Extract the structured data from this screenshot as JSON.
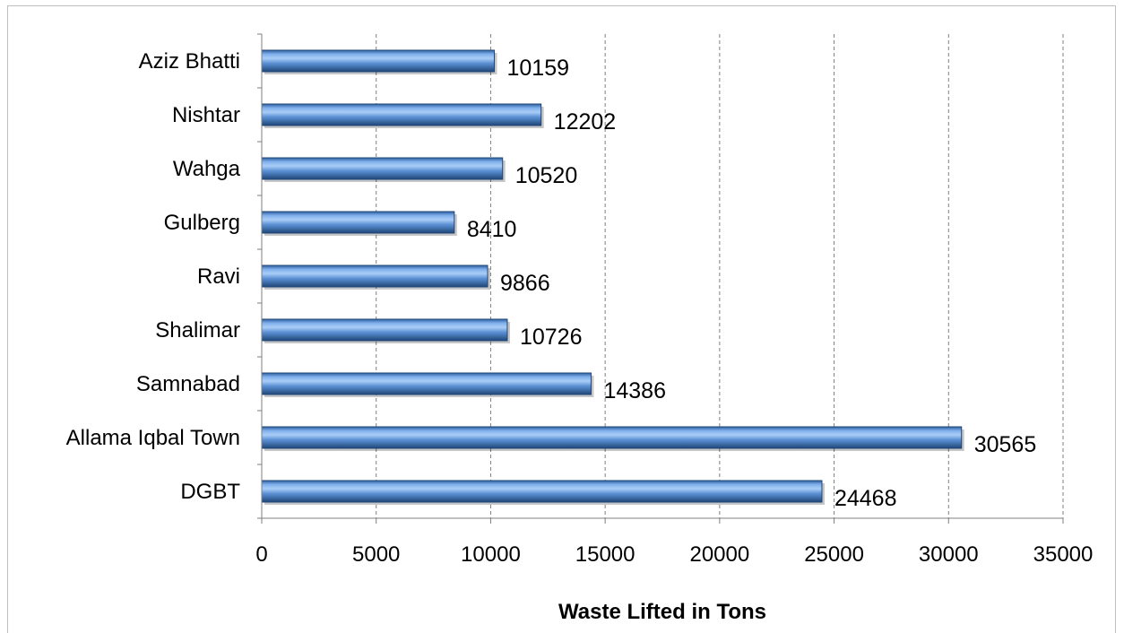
{
  "chart_data": {
    "type": "bar",
    "orientation": "horizontal",
    "categories": [
      "Aziz Bhatti",
      "Nishtar",
      "Wahga",
      "Gulberg",
      "Ravi",
      "Shalimar",
      "Samnabad",
      "Allama Iqbal Town",
      "DGBT"
    ],
    "values": [
      10159,
      12202,
      10520,
      8410,
      9866,
      10726,
      14386,
      30565,
      24468
    ],
    "xlabel": "Waste Lifted in Tons",
    "ylabel": "",
    "title": "",
    "xlim": [
      0,
      35000
    ],
    "x_ticks": [
      "0",
      "5000",
      "10000",
      "15000",
      "20000",
      "25000",
      "30000",
      "35000"
    ],
    "grid": "vertical dashed",
    "legend": "none",
    "bar_color": "#4f81bd"
  }
}
